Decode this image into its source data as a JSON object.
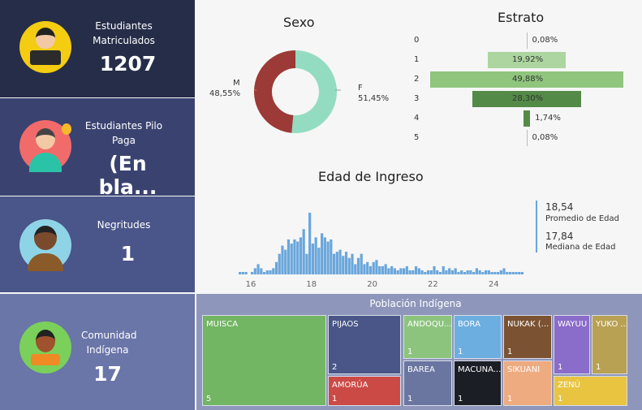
{
  "cards": [
    {
      "label": "Estudiantes Matriculados",
      "value": "1207",
      "icon": "student-reading-icon"
    },
    {
      "label": "Estudiantes Pilo Paga",
      "value": "(En bla...",
      "icon": "student-lightbulb-icon"
    },
    {
      "label": "Negritudes",
      "value": "1",
      "icon": "afro-person-icon"
    },
    {
      "label": "Comunidad Indígena",
      "value": "17",
      "icon": "indigenous-person-icon"
    }
  ],
  "sexo": {
    "title": "Sexo",
    "slices": [
      {
        "label": "F",
        "pct": 51.45,
        "text": "51,45%",
        "color": "#94dcc1"
      },
      {
        "label": "M",
        "pct": 48.55,
        "text": "48,55%",
        "color": "#9b3a36"
      }
    ]
  },
  "estrato": {
    "title": "Estrato",
    "rows": [
      {
        "label": "0",
        "pct": 0.08,
        "text": "0,08%",
        "color": "#bbbbbb"
      },
      {
        "label": "1",
        "pct": 19.92,
        "text": "19,92%",
        "color": "#acd5a0"
      },
      {
        "label": "2",
        "pct": 49.88,
        "text": "49,88%",
        "color": "#8fc57d"
      },
      {
        "label": "3",
        "pct": 28.3,
        "text": "28,30%",
        "color": "#548a48"
      },
      {
        "label": "4",
        "pct": 1.74,
        "text": "1,74%",
        "color": "#548a48"
      },
      {
        "label": "5",
        "pct": 0.08,
        "text": "0,08%",
        "color": "#bbbbbb"
      }
    ]
  },
  "edad": {
    "title": "Edad de Ingreso",
    "promedio": "18,54",
    "promedio_label": "Promedio de Edad",
    "mediana": "17,84",
    "mediana_label": "Mediana de Edad",
    "ticks": [
      "16",
      "18",
      "20",
      "22",
      "24"
    ]
  },
  "chart_data": {
    "type": "bar",
    "title": "Edad de Ingreso",
    "xlabel": "",
    "ylabel": "",
    "xlim": [
      15.6,
      24.9
    ],
    "x_ticks": [
      16,
      18,
      20,
      22,
      24
    ],
    "bin_start": 15.6,
    "bin_width": 0.1,
    "values": [
      1,
      1,
      1,
      0,
      1,
      3,
      5,
      3,
      1,
      2,
      2,
      3,
      6,
      10,
      14,
      12,
      17,
      15,
      17,
      16,
      18,
      22,
      10,
      30,
      15,
      18,
      13,
      20,
      18,
      16,
      17,
      10,
      11,
      12,
      9,
      11,
      8,
      10,
      5,
      8,
      10,
      5,
      6,
      4,
      6,
      7,
      4,
      4,
      5,
      3,
      4,
      3,
      2,
      3,
      3,
      4,
      2,
      2,
      4,
      3,
      2,
      1,
      2,
      2,
      4,
      2,
      1,
      4,
      2,
      3,
      2,
      3,
      1,
      2,
      1,
      2,
      2,
      1,
      3,
      2,
      1,
      2,
      2,
      1,
      1,
      1,
      2,
      3,
      1,
      1,
      1,
      1,
      1,
      1
    ]
  },
  "treemap": {
    "title": "Población Indígena",
    "items": [
      {
        "name": "MUISCA",
        "count": "5",
        "color": "#72b562"
      },
      {
        "name": "PIJAOS",
        "count": "2",
        "color": "#495687"
      },
      {
        "name": "AMORÚA",
        "count": "1",
        "color": "#cc4a45"
      },
      {
        "name": "ANDOQU...",
        "count": "1",
        "color": "#8cc47e"
      },
      {
        "name": "BAREA",
        "count": "1",
        "color": "#6a76a0"
      },
      {
        "name": "BORA",
        "count": "1",
        "color": "#6daee0"
      },
      {
        "name": "MACUNA...",
        "count": "1",
        "color": "#1c1e26"
      },
      {
        "name": "NUKAK (...",
        "count": "1",
        "color": "#7b5332"
      },
      {
        "name": "SIKUANI",
        "count": "1",
        "color": "#efab80"
      },
      {
        "name": "WAYUU",
        "count": "1",
        "color": "#8a6ccb"
      },
      {
        "name": "YUKO ...",
        "count": "1",
        "color": "#b9a153"
      },
      {
        "name": "ZENÚ",
        "count": "1",
        "color": "#e9c441"
      }
    ]
  }
}
